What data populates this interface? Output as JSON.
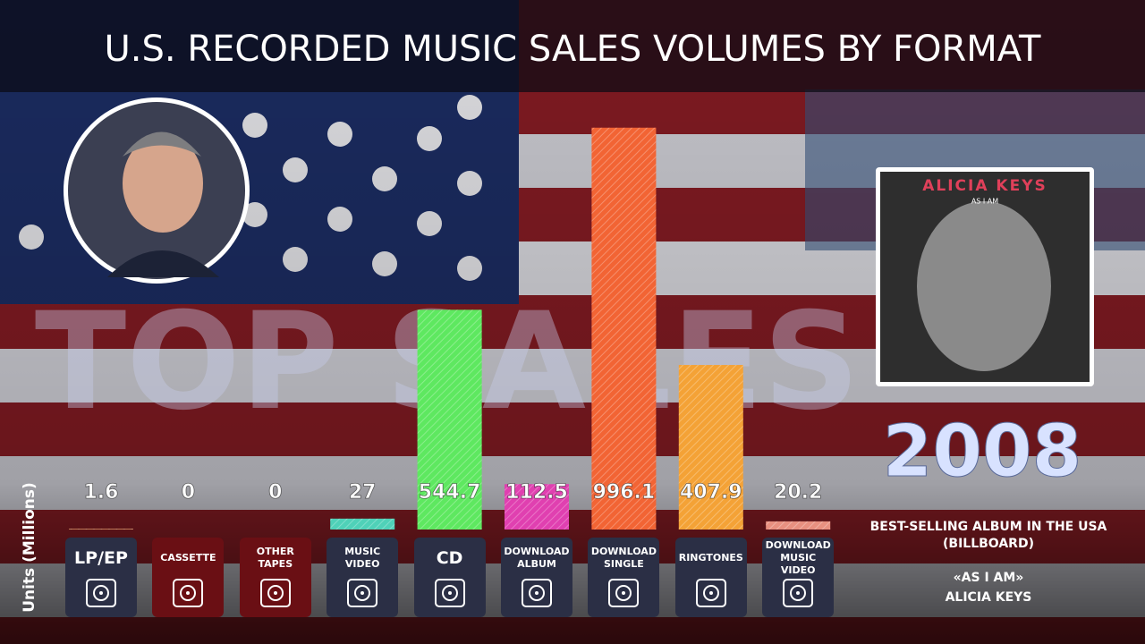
{
  "title": "U.S. RECORDED MUSIC SALES VOLUMES BY FORMAT",
  "watermark": "TOP SALES",
  "album_cover": {
    "artist": "ALICIA KEYS",
    "album": "AS I AM"
  },
  "year": "2008",
  "caption": {
    "heading": "BEST-SELLING ALBUM IN THE USA (BILLBOARD)",
    "album": "«AS I AM»",
    "artist": "ALICIA KEYS"
  },
  "chart_data": {
    "type": "bar",
    "y_label": "Units (Millions)",
    "categories": [
      "LP/EP",
      "CASSETTE",
      "OTHER TAPES",
      "MUSIC VIDEO",
      "CD",
      "DOWNLOAD ALBUM",
      "DOWNLOAD SINGLE",
      "RINGTONES",
      "DOWNLOAD MUSIC VIDEO"
    ],
    "values": [
      1.6,
      0,
      0,
      27,
      544.7,
      112.5,
      996.1,
      407.9,
      20.2
    ],
    "colors": [
      "#e8a070",
      "#c03030",
      "#c03030",
      "#4fd1b8",
      "#5ee860",
      "#e040b0",
      "#f26434",
      "#f4a236",
      "#e89080"
    ],
    "box_colors": [
      "#2b2f45",
      "#6a0f14",
      "#6a0f14",
      "#2b2f45",
      "#2b2f45",
      "#2b2f45",
      "#2b2f45",
      "#2b2f45",
      "#2b2f45"
    ]
  }
}
